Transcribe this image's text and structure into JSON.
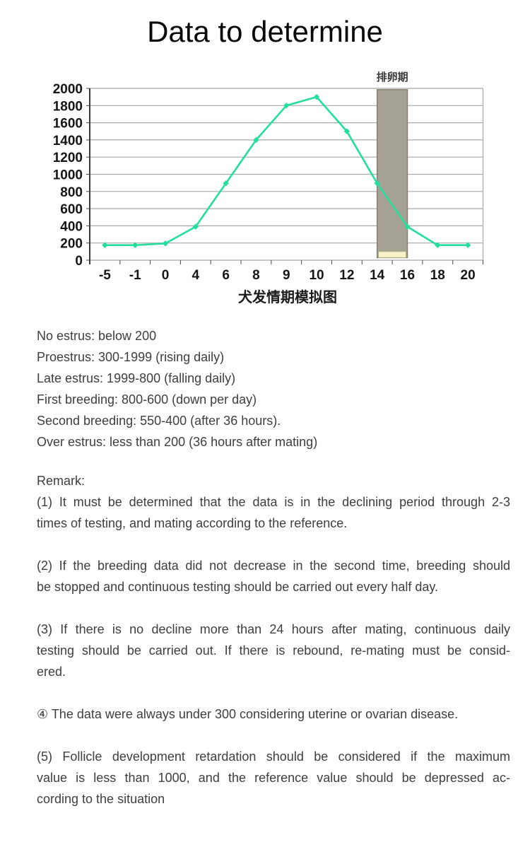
{
  "page": {
    "title": "Data to determine"
  },
  "chart_data": {
    "type": "line",
    "categories": [
      "-5",
      "-1",
      "0",
      "4",
      "6",
      "8",
      "9",
      "10",
      "12",
      "14",
      "16",
      "18",
      "20"
    ],
    "values": [
      175,
      175,
      195,
      390,
      895,
      1400,
      1800,
      1900,
      1500,
      895,
      390,
      175,
      175
    ],
    "title": "犬发情期模拟图",
    "xlabel": "",
    "ylabel": "",
    "ylim": [
      0,
      2000
    ],
    "ytick_step": 200,
    "grid": true,
    "legend": "none",
    "line_color": "#24df9c",
    "marker": "diamond",
    "gridline_color": "#a9a9a9",
    "axis_color": "#3c3c3c",
    "tick_label_color": "#161616",
    "highlight_band": {
      "label": "排卵期",
      "from_category": "14",
      "to_category": "16",
      "fill": "#a5a194",
      "border": "#86816e",
      "base_strip_fill": "#f7f2ca",
      "base_strip_border": "#bcb68a",
      "label_color": "#3a3a3a"
    }
  },
  "reference": {
    "lines": [
      "No estrus: below 200",
      "Proestrus: 300-1999 (rising daily)",
      "Late estrus: 1999-800 (falling daily)",
      "First breeding: 800-600 (down per day)",
      "Second breeding: 550-400 (after 36 hours).",
      "Over estrus: less than 200 (36 hours after mating)"
    ]
  },
  "remarks": {
    "heading": "Remark:",
    "paragraphs": [
      {
        "lines": [
          "(1) It must be determined that the data is in the declining period through 2-3",
          "times of testing, and mating according to the reference."
        ]
      },
      {
        "lines": [
          "(2) If the breeding data did not decrease in the second time, breeding should",
          "be stopped and continuous testing should be carried out every half day."
        ]
      },
      {
        "lines": [
          "(3) If there is no decline more than 24 hours after mating, continuous daily",
          "testing should be carried out. If there is rebound, re-mating must be consid-",
          "ered."
        ]
      },
      {
        "lines": [
          "④ The data were always under 300 considering uterine or ovarian disease."
        ]
      },
      {
        "lines": [
          "(5) Follicle development retardation should be considered if the maximum",
          "value is less than 1000, and the reference value should be depressed ac-",
          "cording to the situation"
        ]
      }
    ]
  }
}
